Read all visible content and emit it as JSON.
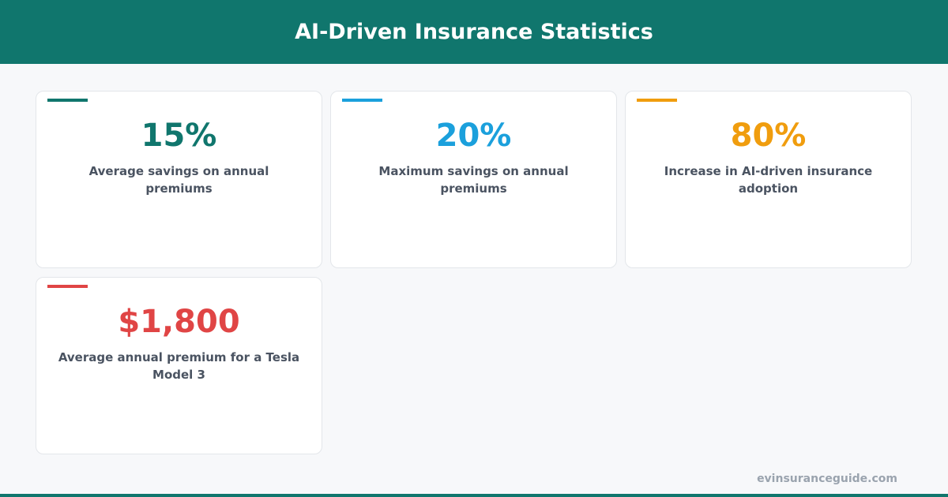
{
  "header": {
    "title": "AI-Driven Insurance Statistics"
  },
  "cards": [
    {
      "value": "15%",
      "label": "Average savings on annual premiums",
      "color": "#10766d"
    },
    {
      "value": "20%",
      "label": "Maximum savings on annual premiums",
      "color": "#1ba0dc"
    },
    {
      "value": "80%",
      "label": "Increase in AI-driven insurance adoption",
      "color": "#f09d0e"
    },
    {
      "value": "$1,800",
      "label": "Average annual premium for a Tesla Model 3",
      "color": "#e04545"
    }
  ],
  "footer": {
    "site": "evinsuranceguide.com"
  }
}
